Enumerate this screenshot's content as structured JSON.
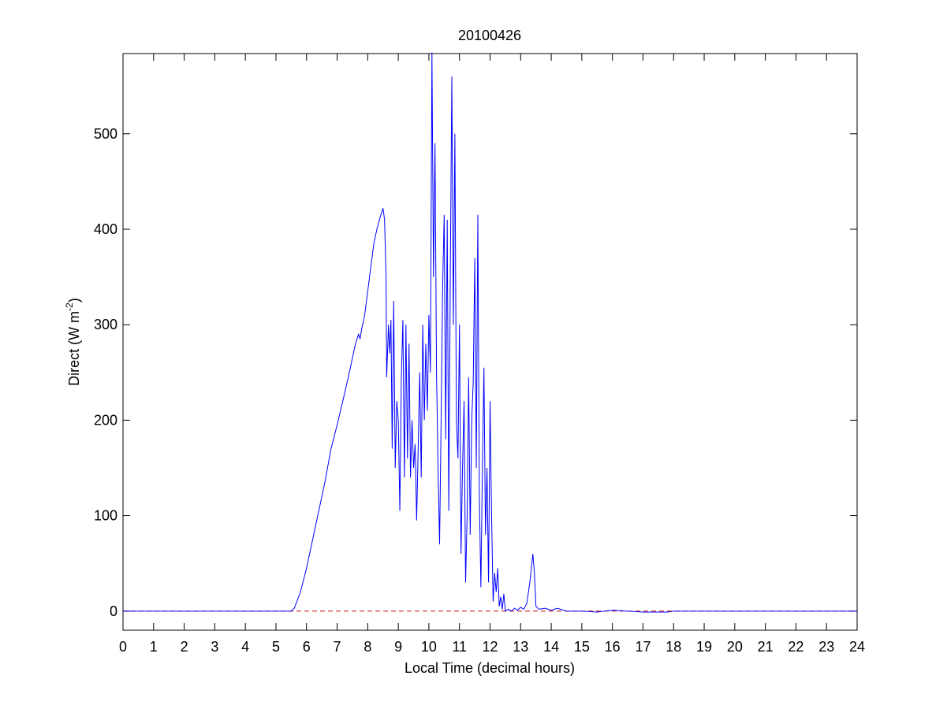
{
  "chart_data": {
    "type": "line",
    "title": "20100426",
    "xlabel": "Local Time (decimal hours)",
    "ylabel": {
      "text": "Direct (W m",
      "superscript": "-2",
      "suffix": ")"
    },
    "x": [
      0,
      5.5,
      5.6,
      5.8,
      6.0,
      6.2,
      6.4,
      6.6,
      6.8,
      7.0,
      7.2,
      7.4,
      7.6,
      7.7,
      7.75,
      7.8,
      7.9,
      8.0,
      8.1,
      8.2,
      8.3,
      8.4,
      8.5,
      8.55,
      8.6,
      8.62,
      8.68,
      8.72,
      8.76,
      8.8,
      8.85,
      8.9,
      8.95,
      9.0,
      9.05,
      9.1,
      9.15,
      9.2,
      9.25,
      9.3,
      9.35,
      9.4,
      9.45,
      9.5,
      9.55,
      9.6,
      9.65,
      9.7,
      9.75,
      9.8,
      9.85,
      9.9,
      9.95,
      10.0,
      10.05,
      10.1,
      10.15,
      10.2,
      10.25,
      10.3,
      10.35,
      10.4,
      10.45,
      10.5,
      10.55,
      10.6,
      10.65,
      10.7,
      10.75,
      10.8,
      10.85,
      10.9,
      10.95,
      11.0,
      11.05,
      11.1,
      11.15,
      11.2,
      11.25,
      11.3,
      11.35,
      11.4,
      11.45,
      11.5,
      11.55,
      11.6,
      11.65,
      11.7,
      11.75,
      11.8,
      11.85,
      11.9,
      11.95,
      12.0,
      12.05,
      12.1,
      12.15,
      12.2,
      12.25,
      12.3,
      12.35,
      12.4,
      12.45,
      12.5,
      12.6,
      12.7,
      12.8,
      12.9,
      13.0,
      13.1,
      13.2,
      13.3,
      13.4,
      13.45,
      13.5,
      13.6,
      13.8,
      14.0,
      14.2,
      14.5,
      15.0,
      15.5,
      16.0,
      16.5,
      17.0,
      17.8,
      18.0,
      24
    ],
    "series": [
      {
        "color": "#0000ff",
        "values": [
          0,
          0,
          3,
          20,
          45,
          75,
          105,
          135,
          170,
          195,
          222,
          250,
          280,
          290,
          285,
          295,
          310,
          335,
          360,
          385,
          400,
          412,
          422,
          410,
          350,
          245,
          300,
          270,
          305,
          170,
          325,
          150,
          220,
          200,
          105,
          245,
          305,
          140,
          300,
          160,
          280,
          140,
          200,
          150,
          175,
          95,
          170,
          250,
          140,
          300,
          200,
          280,
          210,
          310,
          250,
          585,
          350,
          490,
          250,
          150,
          70,
          200,
          340,
          415,
          180,
          410,
          105,
          350,
          560,
          300,
          500,
          200,
          160,
          300,
          60,
          150,
          220,
          30,
          100,
          245,
          80,
          200,
          240,
          370,
          150,
          415,
          120,
          25,
          150,
          255,
          80,
          150,
          30,
          220,
          100,
          10,
          40,
          20,
          45,
          5,
          15,
          2,
          18,
          0,
          2,
          0,
          3,
          1,
          4,
          2,
          8,
          30,
          60,
          40,
          5,
          2,
          3,
          1,
          3,
          0,
          0,
          -1,
          1,
          0,
          -1,
          -1,
          0,
          0
        ]
      }
    ],
    "reference_line": {
      "y": 0,
      "color": "#cc0000"
    },
    "xlim": [
      0,
      24
    ],
    "xticks": [
      0,
      1,
      2,
      3,
      4,
      5,
      6,
      7,
      8,
      9,
      10,
      11,
      12,
      13,
      14,
      15,
      16,
      17,
      18,
      19,
      20,
      21,
      22,
      23,
      24
    ],
    "ylim": [
      -20,
      584
    ],
    "yticks": [
      0,
      100,
      200,
      300,
      400,
      500
    ]
  }
}
